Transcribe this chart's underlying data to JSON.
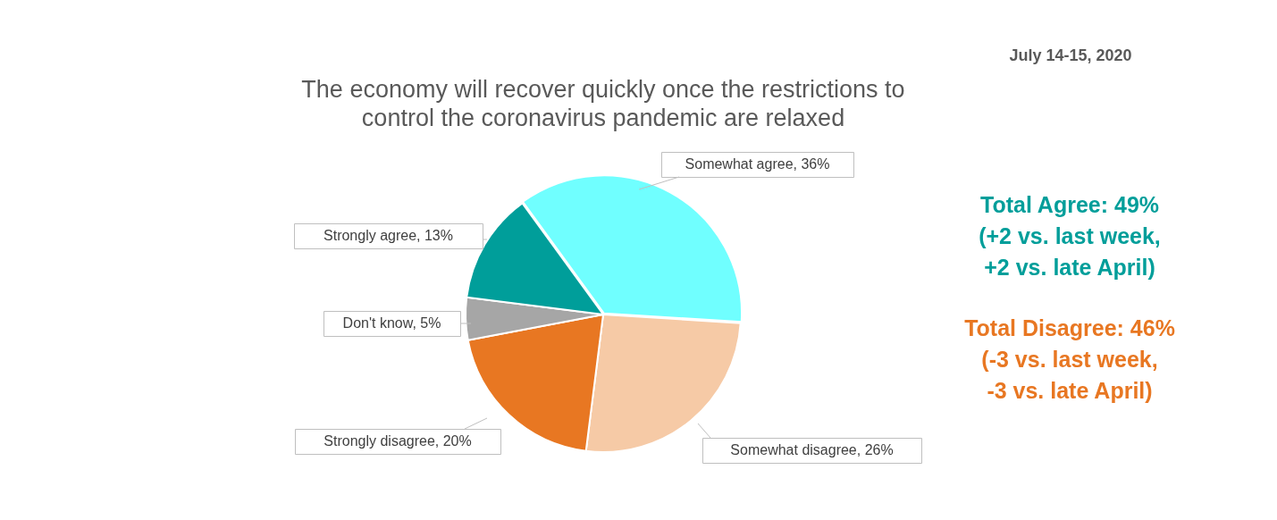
{
  "chart_data": {
    "type": "pie",
    "title": "The economy will recover quickly once the restrictions to control the coronavirus pandemic are relaxed",
    "categories": [
      "Somewhat agree",
      "Somewhat disagree",
      "Strongly disagree",
      "Don't know",
      "Strongly agree"
    ],
    "values": [
      36,
      26,
      20,
      5,
      13
    ],
    "value_labels": [
      "36%",
      "26%",
      "20%",
      "5%",
      "13%"
    ],
    "colors": [
      "#70ffff",
      "#f6caa6",
      "#e87722",
      "#a6a6a6",
      "#009e9a"
    ],
    "legend": false,
    "annotations": [
      "July 14-15, 2020",
      "Total Agree:  49%\n(+2 vs. last week,\n+2 vs. late April)",
      "Total Disagree: 46%\n(-3 vs. last week,\n-3 vs. late April)"
    ]
  }
}
